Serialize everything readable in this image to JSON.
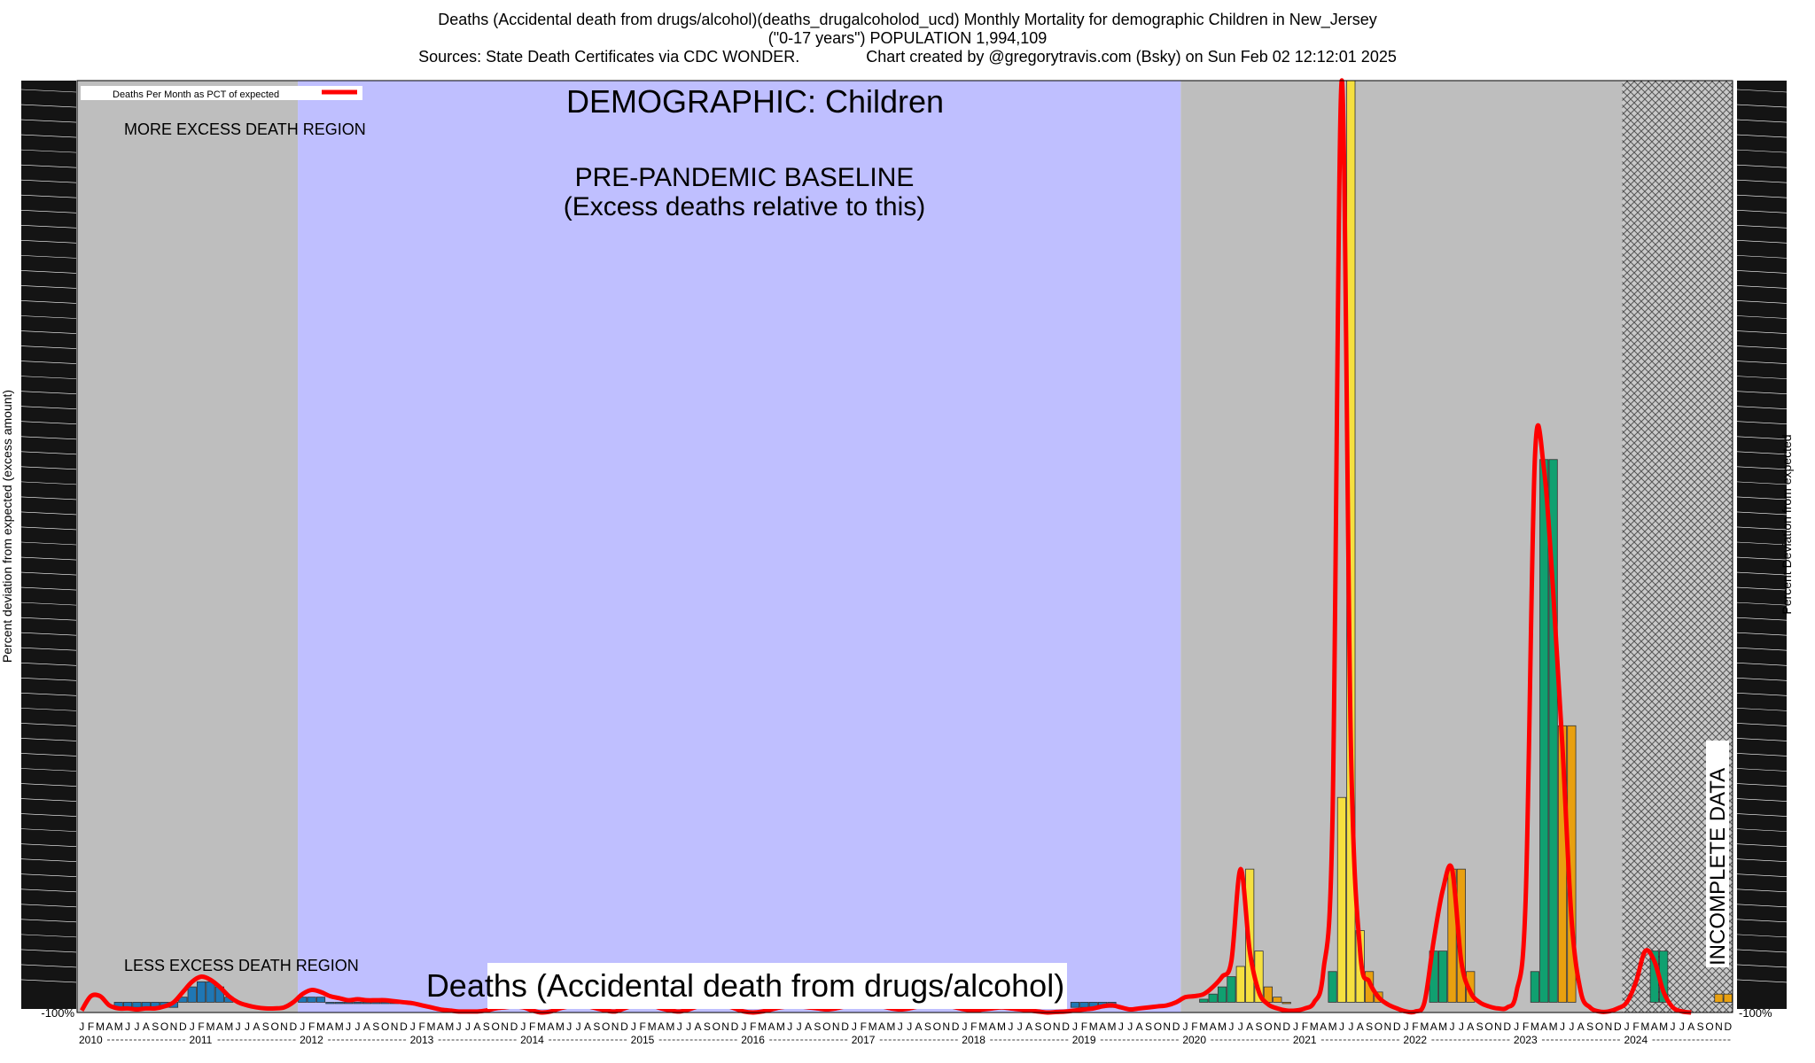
{
  "header": {
    "line1": "Deaths (Accidental death from drugs/alcohol)(deaths_drugalcoholod_ucd) Monthly Mortality for demographic Children in New_Jersey",
    "line2": "(\"0-17 years\") POPULATION 1,994,109",
    "line3": "Sources: State Death Certificates via CDC WONDER.               Chart created by @gregorytravis.com (Bsky) on Sun Feb 02 12:12:01 2025"
  },
  "annotations": {
    "demographic": "DEMOGRAPHIC: Children",
    "baseline_line1": "PRE-PANDEMIC BASELINE",
    "baseline_line2": "(Excess deaths relative to this)",
    "more_excess": "MORE EXCESS DEATH REGION",
    "less_excess": "LESS EXCESS DEATH REGION",
    "incomplete": "INCOMPLETE DATA",
    "bottom_banner": "Deaths (Accidental death from drugs/alcohol)",
    "legend": "Deaths Per Month as PCT of expected"
  },
  "colors": {
    "gray_region": "#bebebe",
    "baseline_region": "#bfbfff",
    "curve": "#ff0000",
    "pre_pandemic_bar": "#1f77b4",
    "green_bar": "#10a070",
    "yellow_bar": "#f5e040",
    "orange_bar": "#e8a010"
  },
  "chart_data": {
    "type": "bar",
    "y_axis_left": "Percent deviation from expected (excess amount)",
    "y_axis_right": "Percent Deviation from expected",
    "month_letters": [
      "J",
      "F",
      "M",
      "A",
      "M",
      "J",
      "J",
      "A",
      "S",
      "O",
      "N",
      "D"
    ],
    "years": [
      "2010",
      "2011",
      "2012",
      "2013",
      "2014",
      "2015",
      "2016",
      "2017",
      "2018",
      "2019",
      "2020",
      "2021",
      "2022",
      "2023",
      "2024"
    ],
    "x_start": "2010-01",
    "baseline_period": [
      "2012-01",
      "2019-12"
    ],
    "incomplete_from": "2024-01",
    "bottom_tick": "-100%",
    "ylim": [
      -100,
      9000
    ],
    "bars": [
      {
        "month": "2010-05",
        "value": -50,
        "color": "blue"
      },
      {
        "month": "2010-06",
        "value": -50,
        "color": "blue"
      },
      {
        "month": "2010-07",
        "value": -50,
        "color": "blue"
      },
      {
        "month": "2010-08",
        "value": -50,
        "color": "blue"
      },
      {
        "month": "2010-09",
        "value": -50,
        "color": "blue"
      },
      {
        "month": "2010-10",
        "value": -50,
        "color": "blue"
      },
      {
        "month": "2010-11",
        "value": -50,
        "color": "blue"
      },
      {
        "month": "2010-12",
        "value": 50,
        "color": "blue"
      },
      {
        "month": "2011-01",
        "value": 150,
        "color": "blue"
      },
      {
        "month": "2011-02",
        "value": 200,
        "color": "blue"
      },
      {
        "month": "2011-03",
        "value": 200,
        "color": "blue"
      },
      {
        "month": "2011-04",
        "value": 150,
        "color": "blue"
      },
      {
        "month": "2011-05",
        "value": 50,
        "color": "blue"
      },
      {
        "month": "2012-01",
        "value": 50,
        "color": "blue"
      },
      {
        "month": "2012-02",
        "value": 50,
        "color": "blue"
      },
      {
        "month": "2012-03",
        "value": 50,
        "color": "blue"
      },
      {
        "month": "2012-04",
        "value": 0,
        "color": "blue"
      },
      {
        "month": "2012-05",
        "value": 0,
        "color": "blue"
      },
      {
        "month": "2012-06",
        "value": 0,
        "color": "blue"
      },
      {
        "month": "2012-07",
        "value": 0,
        "color": "blue"
      },
      {
        "month": "2012-08",
        "value": 0,
        "color": "blue"
      },
      {
        "month": "2012-09",
        "value": 0,
        "color": "blue"
      },
      {
        "month": "2012-10",
        "value": 0,
        "color": "blue"
      },
      {
        "month": "2012-11",
        "value": 0,
        "color": "blue"
      },
      {
        "month": "2019-01",
        "value": -50,
        "color": "blue"
      },
      {
        "month": "2019-02",
        "value": -50,
        "color": "blue"
      },
      {
        "month": "2019-03",
        "value": -50,
        "color": "blue"
      },
      {
        "month": "2019-04",
        "value": -50,
        "color": "blue"
      },
      {
        "month": "2019-05",
        "value": -50,
        "color": "blue"
      },
      {
        "month": "2020-03",
        "value": 30,
        "color": "green"
      },
      {
        "month": "2020-04",
        "value": 80,
        "color": "green"
      },
      {
        "month": "2020-05",
        "value": 150,
        "color": "green"
      },
      {
        "month": "2020-06",
        "value": 250,
        "color": "green"
      },
      {
        "month": "2020-07",
        "value": 350,
        "color": "yellow"
      },
      {
        "month": "2020-08",
        "value": 1300,
        "color": "yellow"
      },
      {
        "month": "2020-09",
        "value": 500,
        "color": "yellow"
      },
      {
        "month": "2020-10",
        "value": 150,
        "color": "orange"
      },
      {
        "month": "2020-11",
        "value": 50,
        "color": "orange"
      },
      {
        "month": "2020-12",
        "value": 0,
        "color": "orange"
      },
      {
        "month": "2021-05",
        "value": 300,
        "color": "green"
      },
      {
        "month": "2021-06",
        "value": 2000,
        "color": "yellow"
      },
      {
        "month": "2021-07",
        "value": 9000,
        "color": "yellow"
      },
      {
        "month": "2021-08",
        "value": 700,
        "color": "yellow"
      },
      {
        "month": "2021-09",
        "value": 300,
        "color": "orange"
      },
      {
        "month": "2021-10",
        "value": 100,
        "color": "orange"
      },
      {
        "month": "2022-04",
        "value": 500,
        "color": "green"
      },
      {
        "month": "2022-05",
        "value": 500,
        "color": "green"
      },
      {
        "month": "2022-06",
        "value": 1300,
        "color": "orange"
      },
      {
        "month": "2022-07",
        "value": 1300,
        "color": "orange"
      },
      {
        "month": "2022-08",
        "value": 300,
        "color": "orange"
      },
      {
        "month": "2023-03",
        "value": 300,
        "color": "green"
      },
      {
        "month": "2023-04",
        "value": 5300,
        "color": "green"
      },
      {
        "month": "2023-05",
        "value": 5300,
        "color": "green"
      },
      {
        "month": "2023-06",
        "value": 2700,
        "color": "orange"
      },
      {
        "month": "2023-07",
        "value": 2700,
        "color": "orange"
      },
      {
        "month": "2024-04",
        "value": 500,
        "color": "green"
      },
      {
        "month": "2024-05",
        "value": 500,
        "color": "green"
      },
      {
        "month": "2024-11",
        "value": 80,
        "color": "orange"
      },
      {
        "month": "2024-12",
        "value": 80,
        "color": "orange"
      }
    ],
    "curve": [
      [
        "2010-01",
        -80
      ],
      [
        "2010-02",
        60
      ],
      [
        "2010-03",
        60
      ],
      [
        "2010-04",
        -30
      ],
      [
        "2010-05",
        -60
      ],
      [
        "2010-06",
        -60
      ],
      [
        "2010-07",
        -70
      ],
      [
        "2010-08",
        -60
      ],
      [
        "2010-09",
        -60
      ],
      [
        "2010-10",
        -40
      ],
      [
        "2010-11",
        0
      ],
      [
        "2010-12",
        100
      ],
      [
        "2011-01",
        200
      ],
      [
        "2011-02",
        250
      ],
      [
        "2011-03",
        220
      ],
      [
        "2011-04",
        150
      ],
      [
        "2011-05",
        60
      ],
      [
        "2011-06",
        0
      ],
      [
        "2011-07",
        -30
      ],
      [
        "2011-08",
        -50
      ],
      [
        "2011-09",
        -60
      ],
      [
        "2011-10",
        -60
      ],
      [
        "2011-11",
        -50
      ],
      [
        "2011-12",
        0
      ],
      [
        "2012-01",
        80
      ],
      [
        "2012-02",
        120
      ],
      [
        "2012-03",
        100
      ],
      [
        "2012-04",
        60
      ],
      [
        "2012-05",
        40
      ],
      [
        "2012-06",
        20
      ],
      [
        "2012-07",
        30
      ],
      [
        "2012-08",
        20
      ],
      [
        "2012-09",
        20
      ],
      [
        "2012-10",
        20
      ],
      [
        "2012-11",
        10
      ],
      [
        "2012-12",
        0
      ],
      [
        "2013-01",
        -10
      ],
      [
        "2013-02",
        -30
      ],
      [
        "2013-03",
        -50
      ],
      [
        "2013-04",
        -70
      ],
      [
        "2013-05",
        -80
      ],
      [
        "2013-06",
        -90
      ],
      [
        "2013-07",
        -90
      ],
      [
        "2013-08",
        -90
      ],
      [
        "2013-09",
        -80
      ],
      [
        "2013-10",
        -60
      ],
      [
        "2013-11",
        -50
      ],
      [
        "2013-12",
        -40
      ],
      [
        "2014-01",
        -50
      ],
      [
        "2014-02",
        -80
      ],
      [
        "2014-03",
        -100
      ],
      [
        "2014-04",
        -90
      ],
      [
        "2014-05",
        -60
      ],
      [
        "2014-06",
        -40
      ],
      [
        "2014-07",
        -30
      ],
      [
        "2014-08",
        -40
      ],
      [
        "2014-09",
        -60
      ],
      [
        "2014-10",
        -80
      ],
      [
        "2014-11",
        -90
      ],
      [
        "2014-12",
        -60
      ],
      [
        "2015-01",
        -30
      ],
      [
        "2015-02",
        -10
      ],
      [
        "2015-03",
        -30
      ],
      [
        "2015-04",
        -60
      ],
      [
        "2015-05",
        -80
      ],
      [
        "2015-06",
        -90
      ],
      [
        "2015-07",
        -70
      ],
      [
        "2015-08",
        -40
      ],
      [
        "2015-09",
        -20
      ],
      [
        "2015-10",
        -10
      ],
      [
        "2015-11",
        -30
      ],
      [
        "2015-12",
        -60
      ],
      [
        "2016-01",
        -90
      ],
      [
        "2016-02",
        -100
      ],
      [
        "2016-03",
        -90
      ],
      [
        "2016-04",
        -70
      ],
      [
        "2016-05",
        -50
      ],
      [
        "2016-06",
        -40
      ],
      [
        "2016-07",
        -40
      ],
      [
        "2016-08",
        -50
      ],
      [
        "2016-09",
        -60
      ],
      [
        "2016-10",
        -70
      ],
      [
        "2016-11",
        -60
      ],
      [
        "2016-12",
        -40
      ],
      [
        "2017-01",
        -20
      ],
      [
        "2017-02",
        -10
      ],
      [
        "2017-03",
        -20
      ],
      [
        "2017-04",
        -40
      ],
      [
        "2017-05",
        -60
      ],
      [
        "2017-06",
        -70
      ],
      [
        "2017-07",
        -60
      ],
      [
        "2017-08",
        -40
      ],
      [
        "2017-09",
        -20
      ],
      [
        "2017-10",
        -10
      ],
      [
        "2017-11",
        -30
      ],
      [
        "2017-12",
        -50
      ],
      [
        "2018-01",
        -70
      ],
      [
        "2018-02",
        -80
      ],
      [
        "2018-03",
        -70
      ],
      [
        "2018-04",
        -60
      ],
      [
        "2018-05",
        -50
      ],
      [
        "2018-06",
        -60
      ],
      [
        "2018-07",
        -70
      ],
      [
        "2018-08",
        -80
      ],
      [
        "2018-09",
        -90
      ],
      [
        "2018-10",
        -100
      ],
      [
        "2018-11",
        -95
      ],
      [
        "2018-12",
        -90
      ],
      [
        "2019-01",
        -80
      ],
      [
        "2019-02",
        -70
      ],
      [
        "2019-03",
        -60
      ],
      [
        "2019-04",
        -40
      ],
      [
        "2019-05",
        -30
      ],
      [
        "2019-06",
        -50
      ],
      [
        "2019-07",
        -70
      ],
      [
        "2019-08",
        -60
      ],
      [
        "2019-09",
        -50
      ],
      [
        "2019-10",
        -40
      ],
      [
        "2019-11",
        -30
      ],
      [
        "2019-12",
        0
      ],
      [
        "2020-01",
        50
      ],
      [
        "2020-02",
        60
      ],
      [
        "2020-03",
        80
      ],
      [
        "2020-04",
        150
      ],
      [
        "2020-05",
        250
      ],
      [
        "2020-06",
        400
      ],
      [
        "2020-07",
        1300
      ],
      [
        "2020-08",
        500
      ],
      [
        "2020-09",
        100
      ],
      [
        "2020-10",
        -20
      ],
      [
        "2020-11",
        -60
      ],
      [
        "2020-12",
        -80
      ],
      [
        "2021-01",
        -80
      ],
      [
        "2021-02",
        -60
      ],
      [
        "2021-03",
        0
      ],
      [
        "2021-04",
        300
      ],
      [
        "2021-05",
        1800
      ],
      [
        "2021-06",
        9000
      ],
      [
        "2021-07",
        2500
      ],
      [
        "2021-08",
        500
      ],
      [
        "2021-09",
        200
      ],
      [
        "2021-10",
        50
      ],
      [
        "2021-11",
        -20
      ],
      [
        "2021-12",
        -60
      ],
      [
        "2022-01",
        -90
      ],
      [
        "2022-02",
        -90
      ],
      [
        "2022-03",
        0
      ],
      [
        "2022-04",
        600
      ],
      [
        "2022-05",
        1100
      ],
      [
        "2022-06",
        1300
      ],
      [
        "2022-07",
        400
      ],
      [
        "2022-08",
        100
      ],
      [
        "2022-09",
        0
      ],
      [
        "2022-10",
        -40
      ],
      [
        "2022-11",
        -60
      ],
      [
        "2022-12",
        -50
      ],
      [
        "2023-01",
        100
      ],
      [
        "2023-02",
        1000
      ],
      [
        "2023-03",
        5300
      ],
      [
        "2023-04",
        5200
      ],
      [
        "2023-05",
        4000
      ],
      [
        "2023-06",
        2500
      ],
      [
        "2023-07",
        800
      ],
      [
        "2023-08",
        100
      ],
      [
        "2023-09",
        -50
      ],
      [
        "2023-10",
        -90
      ],
      [
        "2023-11",
        -90
      ],
      [
        "2023-12",
        -60
      ],
      [
        "2024-01",
        0
      ],
      [
        "2024-02",
        200
      ],
      [
        "2024-03",
        500
      ],
      [
        "2024-04",
        400
      ],
      [
        "2024-05",
        100
      ],
      [
        "2024-06",
        -50
      ],
      [
        "2024-07",
        -90
      ],
      [
        "2024-08",
        -100
      ]
    ]
  }
}
